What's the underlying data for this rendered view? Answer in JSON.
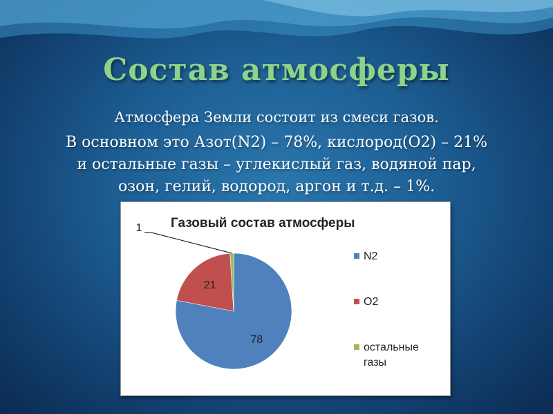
{
  "slide": {
    "title": "Состав  атмосферы",
    "line1": "Атмосфера Земли состоит из смеси газов.",
    "line2": "В основном это Азот(N2) – 78%, кислород(О2) – 21%",
    "line3": "и остальные газы – углекислый газ, водяной пар,",
    "line4": "озон, гелий, водород, аргон и т.д. – 1%."
  },
  "chart_data": {
    "type": "pie",
    "title": "Газовый состав атмосферы",
    "categories": [
      "N2",
      "O2",
      "остальные газы"
    ],
    "values": [
      78,
      21,
      1
    ],
    "data_labels": [
      "78",
      "21",
      "1"
    ],
    "legend_lines": [
      [
        "N2"
      ],
      [
        "O2"
      ],
      [
        "остальные",
        "газы"
      ]
    ],
    "colors": [
      "#4f81bd",
      "#c0504d",
      "#9bbb59"
    ],
    "legend_position": "right"
  }
}
